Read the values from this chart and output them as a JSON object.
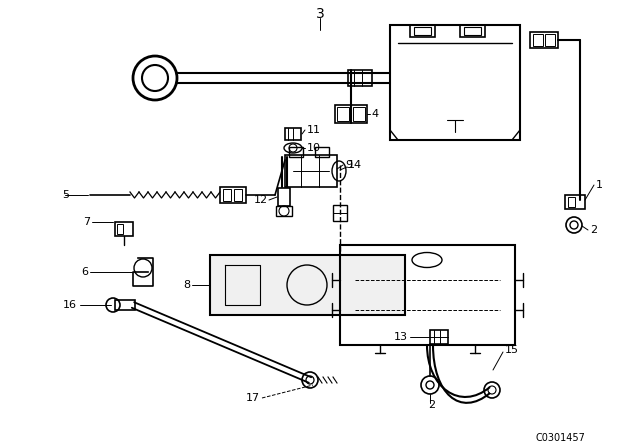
{
  "bg_color": "#ffffff",
  "line_color": "#000000",
  "fig_width": 6.4,
  "fig_height": 4.48,
  "dpi": 100,
  "part_number": "C0301457"
}
